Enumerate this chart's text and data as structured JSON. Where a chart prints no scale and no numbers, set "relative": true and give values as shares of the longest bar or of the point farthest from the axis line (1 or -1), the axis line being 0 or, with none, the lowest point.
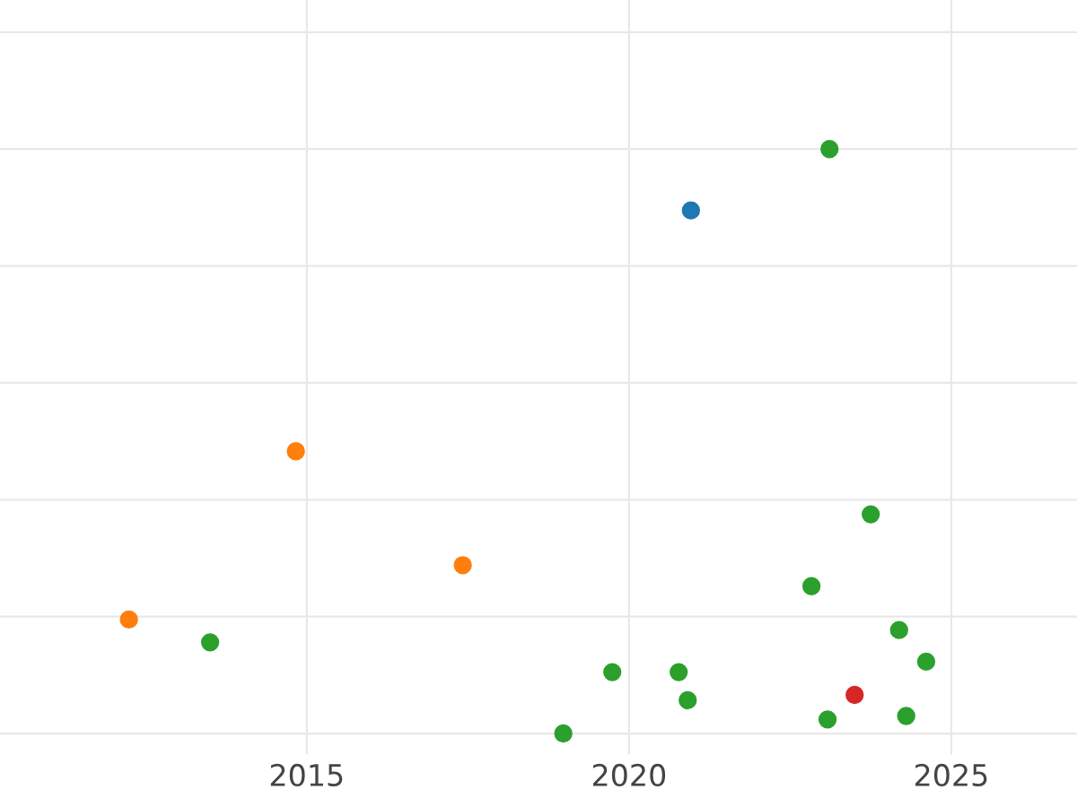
{
  "chart_data": {
    "type": "scatter",
    "relative": true,
    "grid": true,
    "marker": "circle",
    "tick_labels": "x",
    "xlim": [
      2010.24,
      2026.95
    ],
    "xticks": [
      2015,
      2020,
      2025
    ],
    "series": [
      {
        "color": "#1f77b4",
        "x": [
          2020.96
        ],
        "values": [
          0.895
        ]
      },
      {
        "color": "#ff7f0e",
        "x": [
          2014.83,
          2017.42,
          2012.24
        ],
        "values": [
          0.483,
          0.288,
          0.195
        ]
      },
      {
        "color": "#2ca02c",
        "x": [
          2023.11,
          2023.75,
          2022.83,
          2013.5,
          2024.19,
          2024.61,
          2019.74,
          2020.77,
          2020.91,
          2018.98,
          2023.08,
          2024.3
        ],
        "values": [
          1,
          0.375,
          0.252,
          0.156,
          0.177,
          0.123,
          0.105,
          0.105,
          0.057,
          0,
          0.024,
          0.03
        ]
      },
      {
        "color": "#d62728",
        "x": [
          2023.5
        ],
        "values": [
          0.066
        ]
      }
    ]
  }
}
